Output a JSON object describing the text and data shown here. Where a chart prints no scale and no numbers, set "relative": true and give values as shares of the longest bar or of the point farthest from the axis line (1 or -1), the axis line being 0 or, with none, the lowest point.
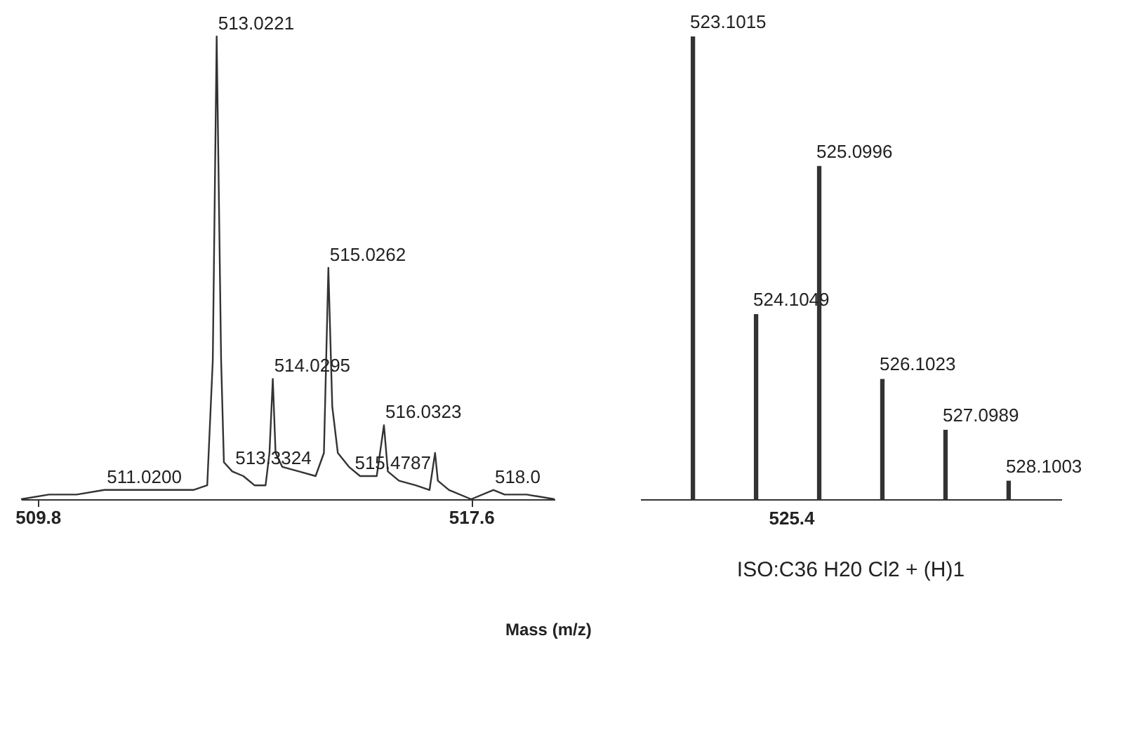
{
  "chart_data": [
    {
      "type": "line",
      "relative": true,
      "color": "#333333",
      "marker": "none",
      "tick_labels": "x",
      "xlabel": "Mass (m/z)",
      "xlim": [
        509.5,
        519.1
      ],
      "xticks": [
        {
          "value": 509.8,
          "label": "509.8"
        },
        {
          "value": 517.6,
          "label": "517.6"
        }
      ],
      "x": [
        509.5,
        510.0,
        510.5,
        511.0,
        511.5,
        512.0,
        512.6,
        512.85,
        512.95,
        513.02,
        513.1,
        513.15,
        513.3,
        513.5,
        513.7,
        513.9,
        513.97,
        514.03,
        514.08,
        514.2,
        514.5,
        514.8,
        514.95,
        515.03,
        515.1,
        515.2,
        515.4,
        515.6,
        515.9,
        516.03,
        516.1,
        516.3,
        516.6,
        516.85,
        516.95,
        517.0,
        517.2,
        517.6,
        518.0,
        518.2,
        518.6,
        519.1
      ],
      "values": [
        0.0,
        0.01,
        0.01,
        0.02,
        0.02,
        0.02,
        0.02,
        0.03,
        0.3,
        1.0,
        0.3,
        0.08,
        0.06,
        0.05,
        0.03,
        0.03,
        0.1,
        0.26,
        0.1,
        0.07,
        0.06,
        0.05,
        0.1,
        0.5,
        0.2,
        0.1,
        0.07,
        0.05,
        0.05,
        0.16,
        0.06,
        0.04,
        0.03,
        0.02,
        0.1,
        0.04,
        0.02,
        0.0,
        0.02,
        0.01,
        0.01,
        0.0
      ],
      "annotations": [
        {
          "text": "513.0221",
          "x": 513.02,
          "y": 1.0
        },
        {
          "text": "515.0262",
          "x": 515.03,
          "y": 0.5
        },
        {
          "text": "514.0295",
          "x": 514.03,
          "y": 0.26
        },
        {
          "text": "516.0323",
          "x": 516.03,
          "y": 0.16
        },
        {
          "text": "513.3324",
          "x": 513.33,
          "y": 0.06
        },
        {
          "text": "515.4787",
          "x": 515.48,
          "y": 0.05
        },
        {
          "text": "511.0200",
          "x": 511.02,
          "y": 0.02
        },
        {
          "text": "518.0",
          "x": 518.0,
          "y": 0.02
        }
      ]
    },
    {
      "type": "bar",
      "relative": true,
      "color": "#333333",
      "tick_labels": false,
      "title": "ISO:C36 H20 Cl2 + (H)1",
      "categories": [
        null,
        null,
        null,
        null,
        null,
        null
      ],
      "values": [
        1.0,
        0.4,
        0.72,
        0.26,
        0.15,
        0.04
      ],
      "annotations": [
        "523.1015",
        "524.1049",
        "525.0996",
        "526.1023",
        "527.0989",
        "528.1003",
        "525.4"
      ]
    }
  ]
}
